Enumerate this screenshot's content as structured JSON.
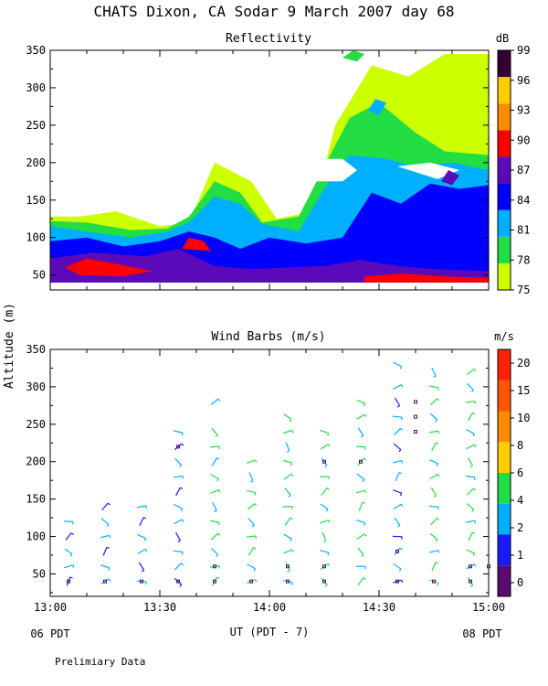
{
  "title": "CHATS Dixon, CA  Sodar   9 March 2007  day  68",
  "footnote": "Prelimiary Data",
  "shared_y_label": "Altitude (m)",
  "x_axis": {
    "label": "UT  (PDT - 7)",
    "tick_labels": [
      "13:00",
      "13:30",
      "14:00",
      "14:30",
      "15:00"
    ],
    "left_note": "06 PDT",
    "right_note": "08 PDT"
  },
  "chart_data": [
    {
      "type": "heatmap",
      "title": "Reflectivity",
      "xlim": [
        0,
        120
      ],
      "ylim": [
        30,
        350
      ],
      "ylabel": "Altitude (m)",
      "y_ticks": [
        50,
        100,
        150,
        200,
        250,
        300,
        350
      ],
      "x_ticks_minutes": [
        0,
        30,
        60,
        90,
        120
      ],
      "colorbar": {
        "title": "dB",
        "labels": [
          "75",
          "78",
          "81",
          "84",
          "87",
          "90",
          "93",
          "96",
          "99"
        ],
        "colors": [
          "#ccff00",
          "#22dd44",
          "#00b0ff",
          "#0000ff",
          "#5a0ab8",
          "#ff0000",
          "#ff8a00",
          "#ffcc00",
          "#330033"
        ]
      },
      "layers": [
        {
          "level": 75,
          "color": "#ccff00",
          "points": [
            [
              0,
              128
            ],
            [
              8,
              128
            ],
            [
              18,
              135
            ],
            [
              30,
              115
            ],
            [
              38,
              120
            ],
            [
              45,
              200
            ],
            [
              55,
              175
            ],
            [
              62,
              125
            ],
            [
              72,
              135
            ],
            [
              78,
              250
            ],
            [
              88,
              330
            ],
            [
              98,
              315
            ],
            [
              108,
              345
            ],
            [
              120,
              345
            ],
            [
              120,
              40
            ],
            [
              0,
              40
            ]
          ]
        },
        {
          "level": 78,
          "color": "#22dd44",
          "points": [
            [
              0,
              122
            ],
            [
              10,
              120
            ],
            [
              22,
              110
            ],
            [
              32,
              112
            ],
            [
              38,
              128
            ],
            [
              45,
              175
            ],
            [
              52,
              160
            ],
            [
              58,
              120
            ],
            [
              68,
              128
            ],
            [
              75,
              195
            ],
            [
              82,
              260
            ],
            [
              90,
              280
            ],
            [
              100,
              240
            ],
            [
              108,
              215
            ],
            [
              120,
              210
            ],
            [
              120,
              40
            ],
            [
              0,
              40
            ]
          ]
        },
        {
          "level": 81,
          "color": "#00b0ff",
          "points": [
            [
              0,
              115
            ],
            [
              10,
              108
            ],
            [
              22,
              100
            ],
            [
              32,
              108
            ],
            [
              38,
              120
            ],
            [
              45,
              155
            ],
            [
              52,
              145
            ],
            [
              58,
              118
            ],
            [
              68,
              108
            ],
            [
              75,
              165
            ],
            [
              82,
              210
            ],
            [
              92,
              205
            ],
            [
              100,
              195
            ],
            [
              110,
              200
            ],
            [
              120,
              190
            ],
            [
              120,
              40
            ],
            [
              0,
              40
            ]
          ]
        },
        {
          "level": 84,
          "color": "#0000ff",
          "points": [
            [
              0,
              95
            ],
            [
              10,
              100
            ],
            [
              20,
              88
            ],
            [
              30,
              95
            ],
            [
              38,
              108
            ],
            [
              45,
              100
            ],
            [
              52,
              85
            ],
            [
              60,
              100
            ],
            [
              70,
              92
            ],
            [
              80,
              100
            ],
            [
              88,
              160
            ],
            [
              96,
              145
            ],
            [
              104,
              172
            ],
            [
              112,
              165
            ],
            [
              120,
              170
            ],
            [
              120,
              40
            ],
            [
              0,
              40
            ]
          ]
        },
        {
          "level": 87,
          "color": "#5a0ab8",
          "points": [
            [
              0,
              72
            ],
            [
              12,
              80
            ],
            [
              26,
              75
            ],
            [
              35,
              85
            ],
            [
              45,
              62
            ],
            [
              55,
              58
            ],
            [
              65,
              60
            ],
            [
              75,
              62
            ],
            [
              85,
              70
            ],
            [
              95,
              62
            ],
            [
              105,
              58
            ],
            [
              120,
              55
            ],
            [
              120,
              40
            ],
            [
              0,
              40
            ]
          ]
        },
        {
          "level": 90,
          "color": "#ff0000",
          "points": [
            [
              4,
              60
            ],
            [
              10,
              72
            ],
            [
              18,
              65
            ],
            [
              28,
              55
            ],
            [
              20,
              48
            ],
            [
              8,
              50
            ]
          ]
        },
        {
          "level": 90,
          "color": "#ff0000",
          "points": [
            [
              36,
              85
            ],
            [
              38,
              100
            ],
            [
              42,
              95
            ],
            [
              44,
              82
            ]
          ]
        },
        {
          "level": 90,
          "color": "#ff0000",
          "points": [
            [
              86,
              48
            ],
            [
              96,
              52
            ],
            [
              108,
              48
            ],
            [
              120,
              46
            ],
            [
              120,
              40
            ],
            [
              86,
              40
            ]
          ]
        }
      ],
      "gaps": [
        {
          "points": [
            [
              68,
              190
            ],
            [
              74,
              205
            ],
            [
              80,
              205
            ],
            [
              84,
              190
            ],
            [
              80,
              175
            ],
            [
              72,
              175
            ]
          ]
        },
        {
          "points": [
            [
              33,
              178
            ],
            [
              38,
              185
            ],
            [
              40,
              176
            ]
          ]
        },
        {
          "points": [
            [
              95,
              195
            ],
            [
              104,
              200
            ],
            [
              112,
              190
            ],
            [
              106,
              178
            ]
          ]
        }
      ],
      "pockets": [
        {
          "level": 81,
          "points": [
            [
              87,
              270
            ],
            [
              89,
              285
            ],
            [
              92,
              280
            ],
            [
              90,
              263
            ]
          ]
        },
        {
          "level": 87,
          "points": [
            [
              107,
              175
            ],
            [
              109,
              190
            ],
            [
              112,
              183
            ],
            [
              110,
              170
            ]
          ]
        },
        {
          "level": 78,
          "points": [
            [
              80,
              340
            ],
            [
              83,
              350
            ],
            [
              86,
              345
            ],
            [
              84,
              335
            ]
          ]
        }
      ]
    },
    {
      "type": "scatter",
      "title": "Wind Barbs (m/s)",
      "xlim": [
        0,
        120
      ],
      "ylim": [
        20,
        350
      ],
      "ylabel": "Altitude (m)",
      "y_ticks": [
        50,
        100,
        150,
        200,
        250,
        300,
        350
      ],
      "x_ticks_minutes": [
        0,
        30,
        60,
        90,
        120
      ],
      "colorbar": {
        "title": "m/s",
        "labels": [
          "0",
          "1",
          "2",
          "4",
          "6",
          "8",
          "10",
          "15",
          "20"
        ],
        "colors": [
          "#5a0a70",
          "#1a1aff",
          "#00b0ff",
          "#22dd44",
          "#ffcc00",
          "#ff8a00",
          "#ff5500",
          "#ff2200"
        ]
      },
      "profiles": [
        {
          "t": 5,
          "altitudes": [
            40,
            60,
            80,
            100,
            120
          ],
          "speed_class": 2
        },
        {
          "t": 15,
          "altitudes": [
            40,
            60,
            80,
            100,
            120,
            140
          ],
          "speed_class": 2
        },
        {
          "t": 25,
          "altitudes": [
            40,
            60,
            80,
            100,
            120,
            140
          ],
          "speed_class": 2
        },
        {
          "t": 35,
          "altitudes": [
            40,
            60,
            80,
            100,
            120,
            140,
            160,
            180,
            200,
            220,
            240
          ],
          "speed_class": 2
        },
        {
          "t": 45,
          "altitudes": [
            40,
            60,
            80,
            100,
            120,
            140,
            160,
            180,
            200,
            220,
            240,
            280
          ],
          "speed_class": 3
        },
        {
          "t": 55,
          "altitudes": [
            40,
            60,
            80,
            100,
            120,
            140,
            160,
            180,
            200
          ],
          "speed_class": 3
        },
        {
          "t": 65,
          "altitudes": [
            40,
            60,
            80,
            100,
            120,
            140,
            160,
            180,
            200,
            220,
            240,
            260
          ],
          "speed_class": 3
        },
        {
          "t": 75,
          "altitudes": [
            40,
            60,
            80,
            100,
            120,
            140,
            160,
            180,
            200,
            220,
            240
          ],
          "speed_class": 3
        },
        {
          "t": 85,
          "altitudes": [
            40,
            60,
            80,
            100,
            120,
            140,
            160,
            180,
            200,
            220,
            240,
            260,
            280
          ],
          "speed_class": 3
        },
        {
          "t": 95,
          "altitudes": [
            40,
            60,
            80,
            100,
            120,
            140,
            160,
            180,
            200,
            220,
            240,
            260,
            280,
            300,
            330
          ],
          "speed_class": 2
        },
        {
          "t": 105,
          "altitudes": [
            40,
            60,
            80,
            100,
            120,
            140,
            160,
            180,
            200,
            220,
            240,
            260,
            280,
            300,
            320
          ],
          "speed_class": 3
        },
        {
          "t": 115,
          "altitudes": [
            40,
            60,
            80,
            100,
            120,
            140,
            160,
            180,
            200,
            220,
            240,
            260,
            280,
            300,
            320
          ],
          "speed_class": 3
        }
      ],
      "calm_markers": [
        {
          "t": 5,
          "alt": 40
        },
        {
          "t": 15,
          "alt": 40
        },
        {
          "t": 25,
          "alt": 40
        },
        {
          "t": 35,
          "alt": 40
        },
        {
          "t": 35,
          "alt": 220
        },
        {
          "t": 45,
          "alt": 40
        },
        {
          "t": 45,
          "alt": 60
        },
        {
          "t": 55,
          "alt": 40
        },
        {
          "t": 65,
          "alt": 40
        },
        {
          "t": 65,
          "alt": 60
        },
        {
          "t": 75,
          "alt": 40
        },
        {
          "t": 75,
          "alt": 60
        },
        {
          "t": 75,
          "alt": 200
        },
        {
          "t": 85,
          "alt": 200
        },
        {
          "t": 95,
          "alt": 40
        },
        {
          "t": 95,
          "alt": 80
        },
        {
          "t": 100,
          "alt": 280
        },
        {
          "t": 100,
          "alt": 260
        },
        {
          "t": 100,
          "alt": 240
        },
        {
          "t": 105,
          "alt": 40
        },
        {
          "t": 115,
          "alt": 40
        },
        {
          "t": 115,
          "alt": 60
        },
        {
          "t": 120,
          "alt": 60
        }
      ]
    }
  ]
}
